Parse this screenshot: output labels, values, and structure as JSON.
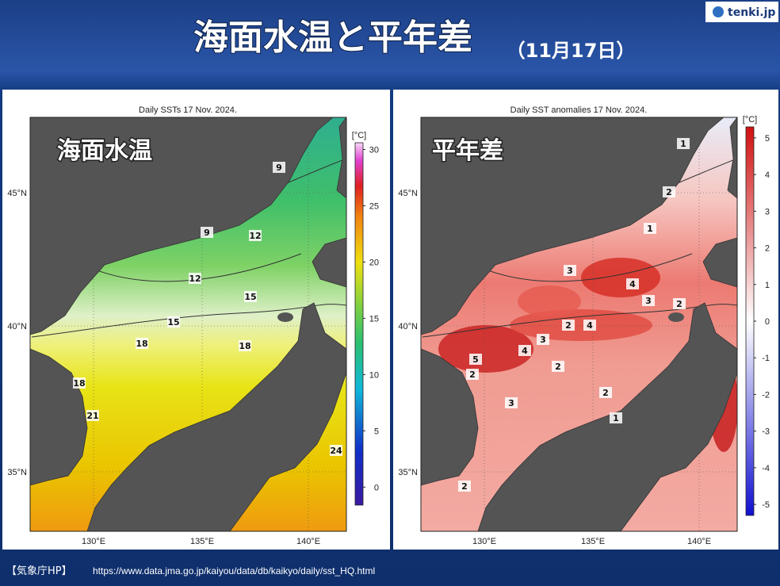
{
  "header": {
    "title": "海面水温と平年差",
    "date": "（11月17日）",
    "logo": "tenki.jp"
  },
  "axes": {
    "lat": [
      "45°N",
      "40°N",
      "35°N"
    ],
    "lon": [
      "130°E",
      "135°E",
      "140°E"
    ]
  },
  "panels": [
    {
      "caption": "Daily SSTs 17 Nov. 2024.",
      "label": "海面水温",
      "unit": "[°C]",
      "colorbar": {
        "range": [
          -1.6,
          30.6
        ],
        "ticks": [
          30,
          25,
          20,
          15,
          10,
          5,
          0
        ]
      },
      "contour_labels": [
        9,
        9,
        12,
        12,
        15,
        15,
        18,
        18,
        18,
        21,
        24
      ]
    },
    {
      "caption": "Daily SST anomalies 17 Nov. 2024.",
      "label": "平年差",
      "unit": "[°C]",
      "colorbar": {
        "range": [
          -5.3,
          5.3
        ],
        "ticks": [
          5,
          4,
          3,
          2,
          1,
          0,
          -1,
          -2,
          -3,
          -4,
          -5
        ]
      },
      "contour_labels": [
        1,
        2,
        1,
        3,
        4,
        3,
        2,
        2,
        4,
        3,
        4,
        5,
        2,
        2,
        2,
        3,
        1,
        2
      ]
    }
  ],
  "footer": {
    "source": "【気象庁HP】",
    "url": "https://www.data.jma.go.jp/kaiyou/data/db/kaikyo/daily/sst_HQ.html"
  }
}
